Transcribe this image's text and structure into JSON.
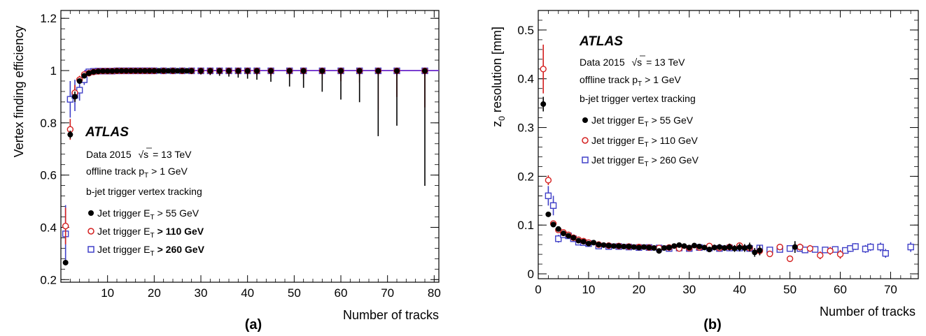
{
  "chart_data": [
    {
      "type": "scatter",
      "panel_label": "(a)",
      "ylabel": "Vertex finding efficiency",
      "xlabel": "Number of tracks",
      "xlim": [
        0,
        81
      ],
      "ylim": [
        0.19,
        1.23
      ],
      "xticks": [
        "10",
        "20",
        "30",
        "40",
        "50",
        "60",
        "70",
        "80"
      ],
      "yticks": [
        "0.2",
        "0.4",
        "0.6",
        "0.8",
        "1",
        "1.2"
      ],
      "atlas_label": "ATLAS",
      "text_lines": {
        "data_prefix": "Data 2015",
        "sqrt_s": "= 13 TeV",
        "track_prefix": "offline track p",
        "track_sub": "T",
        "track_suffix": "> 1 GeV",
        "trigger": "b-jet trigger vertex tracking"
      },
      "legend": [
        {
          "name_prefix": "Jet trigger E",
          "sub": "T",
          "name_suffix": "> 55 GeV",
          "marker": "filled-circle",
          "color": "#000000"
        },
        {
          "name_prefix": "Jet trigger E",
          "sub": "T",
          "name_suffix": "> 110 GeV",
          "marker": "open-circle",
          "color": "#d42020"
        },
        {
          "name_prefix": "Jet trigger E",
          "sub": "T",
          "name_suffix": "> 260 GeV",
          "marker": "open-square",
          "color": "#4040c8"
        }
      ],
      "series": [
        {
          "name": "Jet trigger ET > 55 GeV",
          "x": [
            1,
            2,
            3,
            4,
            5,
            6,
            7,
            8,
            9,
            10,
            11,
            12,
            13,
            14,
            15,
            16,
            17,
            18,
            19,
            20,
            21,
            22,
            23,
            24,
            25,
            26,
            27,
            28,
            30,
            32,
            34,
            36,
            38,
            40,
            42,
            45,
            49,
            52,
            56,
            60,
            64,
            68,
            72,
            78
          ],
          "y": [
            0.265,
            0.755,
            0.9,
            0.96,
            0.98,
            0.99,
            0.995,
            0.997,
            0.998,
            0.998,
            0.998,
            0.999,
            0.999,
            0.999,
            0.999,
            0.999,
            0.999,
            0.999,
            0.999,
            0.999,
            0.999,
            0.999,
            0.999,
            0.999,
            0.999,
            0.999,
            0.999,
            0.999,
            0.999,
            0.999,
            0.999,
            0.999,
            0.999,
            0.999,
            0.999,
            0.999,
            0.999,
            0.999,
            0.999,
            0.999,
            0.999,
            0.999,
            0.999,
            0.999
          ],
          "err_low": [
            0.01,
            0.015,
            0.02,
            0.01,
            0.008,
            0.005,
            0.003,
            0.003,
            0.002,
            0.002,
            0.002,
            0.002,
            0.002,
            0.002,
            0.002,
            0.002,
            0.002,
            0.002,
            0.002,
            0.003,
            0.003,
            0.004,
            0.005,
            0.006,
            0.007,
            0.008,
            0.01,
            0.012,
            0.014,
            0.016,
            0.019,
            0.022,
            0.026,
            0.03,
            0.034,
            0.042,
            0.06,
            0.065,
            0.08,
            0.11,
            0.12,
            0.25,
            0.21,
            0.44
          ],
          "err_high": [
            0.01,
            0.015,
            0.02,
            0.01,
            0.008,
            0.005,
            0.003,
            0.002,
            0.002,
            0.001,
            0.001,
            0.001,
            0.001,
            0.001,
            0.001,
            0.001,
            0.001,
            0.001,
            0.001,
            0.001,
            0.001,
            0.001,
            0.001,
            0.001,
            0.001,
            0.001,
            0.001,
            0.001,
            0.001,
            0.001,
            0.001,
            0.001,
            0.001,
            0.001,
            0.001,
            0.001,
            0.001,
            0.001,
            0.001,
            0.001,
            0.001,
            0.001,
            0.001,
            0.001
          ]
        },
        {
          "name": "Jet trigger ET > 110 GeV",
          "x": [
            1,
            2,
            3,
            4,
            5,
            6,
            7,
            8,
            9,
            10,
            11,
            12,
            13,
            14,
            15,
            16,
            17,
            18,
            19,
            20,
            22,
            24,
            26,
            28,
            30,
            32,
            34,
            36,
            38,
            40,
            42,
            45,
            49,
            52,
            56,
            60,
            64,
            68,
            72,
            78
          ],
          "y": [
            0.405,
            0.775,
            0.915,
            0.965,
            0.985,
            0.99,
            0.995,
            0.997,
            0.998,
            0.998,
            0.998,
            0.999,
            0.999,
            0.999,
            0.999,
            0.999,
            0.999,
            0.999,
            0.999,
            0.999,
            0.999,
            0.999,
            0.999,
            0.999,
            0.999,
            0.999,
            0.999,
            0.999,
            0.999,
            0.999,
            0.999,
            0.999,
            0.999,
            0.999,
            0.999,
            0.999,
            0.999,
            0.999,
            0.999,
            0.999
          ],
          "err_low": [
            0.07,
            0.04,
            0.03,
            0.015,
            0.01,
            0.006,
            0.004,
            0.003,
            0.002,
            0.002,
            0.002,
            0.002,
            0.002,
            0.002,
            0.002,
            0.002,
            0.002,
            0.002,
            0.002,
            0.002,
            0.003,
            0.004,
            0.005,
            0.006,
            0.007,
            0.008,
            0.009,
            0.01,
            0.012,
            0.014,
            0.016,
            0.02,
            0.025,
            0.03,
            0.035,
            0.04,
            0.045,
            0.15,
            0.1,
            0.14
          ],
          "err_high": [
            0.07,
            0.04,
            0.03,
            0.015,
            0.01,
            0.006,
            0.004,
            0.002,
            0.002,
            0.001,
            0.001,
            0.001,
            0.001,
            0.001,
            0.001,
            0.001,
            0.001,
            0.001,
            0.001,
            0.001,
            0.001,
            0.001,
            0.001,
            0.001,
            0.001,
            0.001,
            0.001,
            0.001,
            0.001,
            0.001,
            0.001,
            0.001,
            0.001,
            0.001,
            0.001,
            0.001,
            0.001,
            0.001,
            0.001,
            0.001
          ]
        },
        {
          "name": "Jet trigger ET > 260 GeV",
          "x": [
            1,
            2,
            3,
            4,
            5,
            6,
            7,
            8,
            9,
            10,
            11,
            12,
            13,
            14,
            15,
            16,
            17,
            18,
            19,
            20,
            22,
            24,
            26,
            28,
            30,
            32,
            34,
            36,
            38,
            40,
            42,
            45,
            49,
            52,
            56,
            60,
            64,
            68,
            72,
            78
          ],
          "y": [
            0.375,
            0.89,
            0.905,
            0.925,
            0.965,
            0.995,
            0.997,
            0.998,
            0.998,
            0.998,
            0.998,
            0.999,
            0.999,
            0.999,
            0.999,
            0.999,
            0.999,
            0.999,
            0.999,
            0.999,
            0.999,
            0.999,
            0.999,
            0.999,
            0.999,
            0.999,
            0.999,
            0.999,
            0.999,
            0.999,
            0.999,
            0.999,
            0.999,
            0.999,
            0.999,
            0.999,
            0.999,
            0.999,
            0.999,
            0.999
          ],
          "err_low": [
            0.11,
            0.07,
            0.06,
            0.04,
            0.02,
            0.01,
            0.006,
            0.004,
            0.003,
            0.003,
            0.002,
            0.002,
            0.002,
            0.002,
            0.002,
            0.002,
            0.002,
            0.002,
            0.002,
            0.002,
            0.003,
            0.003,
            0.004,
            0.004,
            0.005,
            0.005,
            0.006,
            0.006,
            0.007,
            0.008,
            0.009,
            0.01,
            0.012,
            0.014,
            0.016,
            0.018,
            0.02,
            0.02,
            0.02,
            0.02
          ],
          "err_high": [
            0.11,
            0.07,
            0.06,
            0.04,
            0.02,
            0.005,
            0.003,
            0.002,
            0.002,
            0.001,
            0.001,
            0.001,
            0.001,
            0.001,
            0.001,
            0.001,
            0.001,
            0.001,
            0.001,
            0.001,
            0.001,
            0.001,
            0.001,
            0.001,
            0.001,
            0.001,
            0.001,
            0.001,
            0.001,
            0.001,
            0.001,
            0.001,
            0.001,
            0.001,
            0.001,
            0.001,
            0.001,
            0.001,
            0.001,
            0.001
          ]
        }
      ]
    },
    {
      "type": "scatter",
      "panel_label": "(b)",
      "ylabel": "z0 resolution [mm]",
      "xlabel": "Number of tracks",
      "xlim": [
        0,
        75.5
      ],
      "ylim": [
        -0.01,
        0.54
      ],
      "xticks": [
        "0",
        "10",
        "20",
        "30",
        "40",
        "50",
        "60",
        "70"
      ],
      "yticks": [
        "0",
        "0.1",
        "0.2",
        "0.3",
        "0.4",
        "0.5"
      ],
      "ylabel_main": "z",
      "ylabel_sub": "0",
      "ylabel_suffix": "resolution [mm]",
      "atlas_label": "ATLAS",
      "text_lines": {
        "data_prefix": "Data 2015",
        "sqrt_s": "= 13 TeV",
        "track_prefix": "offline track p",
        "track_sub": "T",
        "track_suffix": "> 1 GeV",
        "trigger": "b-jet trigger vertex tracking"
      },
      "legend": [
        {
          "name_prefix": "Jet trigger E",
          "sub": "T",
          "name_suffix": "> 55 GeV",
          "marker": "filled-circle",
          "color": "#000000"
        },
        {
          "name_prefix": "Jet trigger E",
          "sub": "T",
          "name_suffix": "> 110 GeV",
          "marker": "open-circle",
          "color": "#d42020"
        },
        {
          "name_prefix": "Jet trigger E",
          "sub": "T",
          "name_suffix": "> 260 GeV",
          "marker": "open-square",
          "color": "#4040c8"
        }
      ],
      "series": [
        {
          "name": "Jet trigger ET > 55 GeV",
          "x": [
            1,
            2,
            3,
            4,
            5,
            6,
            7,
            8,
            9,
            10,
            11,
            12,
            13,
            14,
            15,
            16,
            17,
            18,
            19,
            20,
            21,
            22,
            23,
            24,
            25,
            26,
            27,
            28,
            29,
            30,
            31,
            32,
            33,
            34,
            35,
            36,
            37,
            38,
            39,
            40,
            41,
            42,
            43,
            44,
            51
          ],
          "y": [
            0.348,
            0.122,
            0.101,
            0.092,
            0.083,
            0.078,
            0.074,
            0.068,
            0.066,
            0.062,
            0.064,
            0.06,
            0.059,
            0.058,
            0.057,
            0.057,
            0.056,
            0.056,
            0.055,
            0.054,
            0.055,
            0.054,
            0.053,
            0.047,
            0.053,
            0.054,
            0.057,
            0.059,
            0.057,
            0.054,
            0.058,
            0.056,
            0.054,
            0.05,
            0.054,
            0.055,
            0.053,
            0.055,
            0.052,
            0.054,
            0.053,
            0.055,
            0.044,
            0.048,
            0.055
          ],
          "err": [
            0.015,
            0.005,
            0.004,
            0.003,
            0.003,
            0.003,
            0.003,
            0.002,
            0.002,
            0.002,
            0.002,
            0.002,
            0.002,
            0.002,
            0.002,
            0.002,
            0.002,
            0.002,
            0.002,
            0.002,
            0.002,
            0.002,
            0.002,
            0.003,
            0.003,
            0.003,
            0.003,
            0.004,
            0.004,
            0.004,
            0.004,
            0.005,
            0.005,
            0.005,
            0.006,
            0.006,
            0.006,
            0.007,
            0.007,
            0.008,
            0.008,
            0.009,
            0.009,
            0.01,
            0.012
          ]
        },
        {
          "name": "Jet trigger ET > 110 GeV",
          "x": [
            1,
            2,
            3,
            4,
            5,
            6,
            7,
            8,
            9,
            10,
            12,
            14,
            16,
            18,
            20,
            22,
            24,
            26,
            28,
            30,
            32,
            34,
            36,
            38,
            40,
            42,
            44,
            46,
            48,
            50,
            52,
            54,
            56,
            58,
            60
          ],
          "y": [
            0.42,
            0.192,
            0.103,
            0.09,
            0.085,
            0.08,
            0.074,
            0.07,
            0.067,
            0.064,
            0.06,
            0.058,
            0.057,
            0.056,
            0.055,
            0.054,
            0.053,
            0.054,
            0.052,
            0.053,
            0.054,
            0.057,
            0.053,
            0.055,
            0.058,
            0.053,
            0.047,
            0.041,
            0.055,
            0.031,
            0.055,
            0.052,
            0.038,
            0.047,
            0.04
          ],
          "err": [
            0.05,
            0.01,
            0.005,
            0.004,
            0.003,
            0.003,
            0.003,
            0.003,
            0.002,
            0.002,
            0.002,
            0.002,
            0.002,
            0.002,
            0.002,
            0.002,
            0.002,
            0.002,
            0.003,
            0.003,
            0.003,
            0.003,
            0.004,
            0.004,
            0.004,
            0.005,
            0.005,
            0.005,
            0.006,
            0.006,
            0.007,
            0.007,
            0.008,
            0.008,
            0.009
          ]
        },
        {
          "name": "Jet trigger ET > 260 GeV",
          "x": [
            2,
            3,
            4,
            5,
            6,
            7,
            8,
            9,
            10,
            12,
            14,
            16,
            18,
            20,
            22,
            24,
            26,
            28,
            30,
            32,
            34,
            36,
            38,
            40,
            42,
            44,
            46,
            48,
            50,
            52,
            53,
            55,
            57,
            59,
            61,
            62,
            63,
            65,
            66,
            68,
            69,
            74
          ],
          "y": [
            0.16,
            0.14,
            0.072,
            0.08,
            0.078,
            0.072,
            0.065,
            0.064,
            0.062,
            0.057,
            0.056,
            0.056,
            0.055,
            0.054,
            0.054,
            0.053,
            0.052,
            0.053,
            0.052,
            0.054,
            0.053,
            0.052,
            0.053,
            0.053,
            0.052,
            0.053,
            0.049,
            0.05,
            0.052,
            0.052,
            0.049,
            0.05,
            0.049,
            0.05,
            0.048,
            0.052,
            0.056,
            0.051,
            0.055,
            0.055,
            0.042,
            0.055
          ],
          "err": [
            0.02,
            0.02,
            0.008,
            0.005,
            0.004,
            0.004,
            0.003,
            0.003,
            0.003,
            0.002,
            0.002,
            0.002,
            0.002,
            0.002,
            0.002,
            0.002,
            0.002,
            0.002,
            0.003,
            0.003,
            0.003,
            0.003,
            0.003,
            0.003,
            0.004,
            0.004,
            0.004,
            0.004,
            0.005,
            0.005,
            0.005,
            0.005,
            0.006,
            0.006,
            0.006,
            0.007,
            0.007,
            0.008,
            0.008,
            0.009,
            0.009,
            0.01
          ]
        }
      ]
    }
  ]
}
